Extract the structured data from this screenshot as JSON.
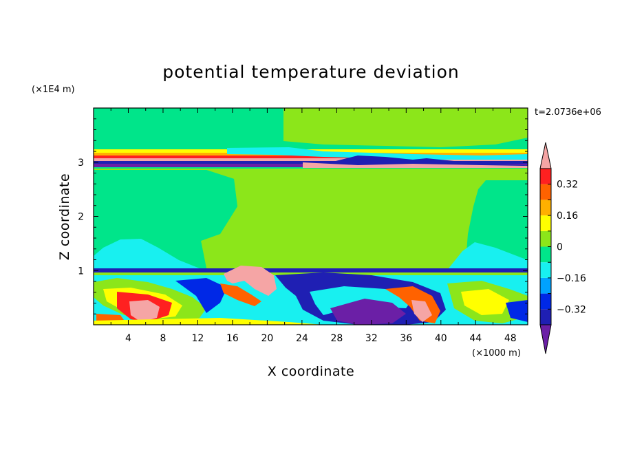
{
  "chart_data": {
    "type": "heatmap",
    "title": "potential temperature deviation",
    "xlabel": "X coordinate",
    "ylabel": "Z coordinate",
    "x_unit": "(×1000 m)",
    "y_unit": "(×1E4 m)",
    "time_label": "t=2.0736e+06",
    "xlim": [
      0,
      50
    ],
    "ylim": [
      0,
      4
    ],
    "x_ticks": [
      4,
      8,
      12,
      16,
      20,
      24,
      28,
      32,
      36,
      40,
      44,
      48
    ],
    "y_ticks": [
      1,
      2,
      3
    ],
    "colorbar": {
      "levels": [
        -0.4,
        -0.32,
        -0.24,
        -0.16,
        -0.08,
        0,
        0.08,
        0.16,
        0.24,
        0.32,
        0.4
      ],
      "tick_labels": [
        "0.32",
        "0.16",
        "0",
        "-0.16",
        "-0.32"
      ],
      "tick_values": [
        0.32,
        0.16,
        0,
        -0.16,
        -0.32
      ],
      "colors": [
        "#6b1fa6",
        "#1f1fb3",
        "#0028e6",
        "#00a2ff",
        "#18f0f0",
        "#00e58a",
        "#8ce61a",
        "#ffff00",
        "#ffb000",
        "#ff6200",
        "#ff2020",
        "#f5a5a5"
      ],
      "under_color": "#6b1fa6",
      "over_color": "#f5a5a5"
    }
  }
}
